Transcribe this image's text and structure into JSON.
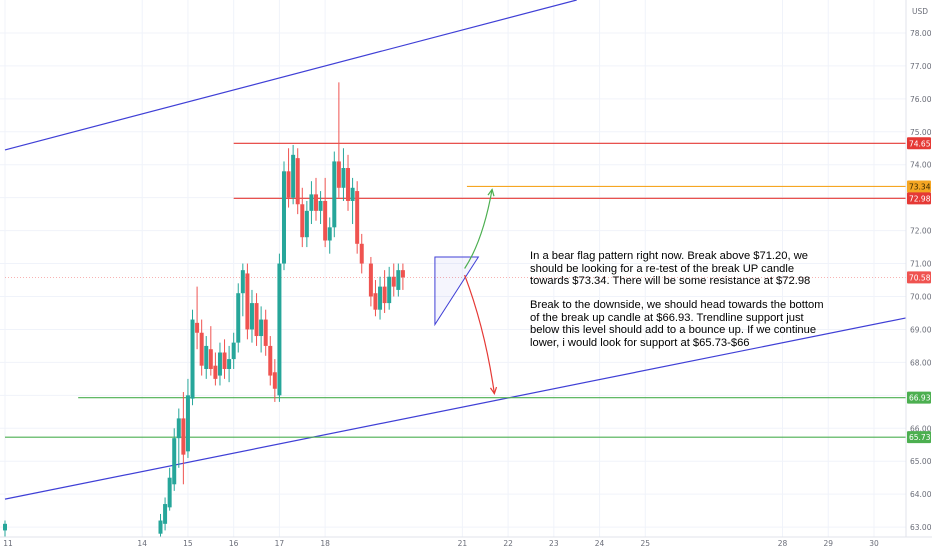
{
  "chart_data": {
    "type": "candlestick",
    "currency_label": "USD",
    "y_range": [
      62.7,
      79.0
    ],
    "x_range_days": [
      11.0,
      30.7
    ],
    "y_ticks": [
      "63.00",
      "64.00",
      "65.00",
      "66.00",
      "67.00",
      "68.00",
      "69.00",
      "70.00",
      "71.00",
      "72.00",
      "73.00",
      "74.00",
      "75.00",
      "76.00",
      "77.00",
      "78.00"
    ],
    "x_ticks": [
      "11",
      "14",
      "15",
      "16",
      "17",
      "18",
      "21",
      "22",
      "23",
      "24",
      "25",
      "28",
      "29",
      "30"
    ],
    "price_levels": [
      {
        "name": "resistance-74",
        "price": 74.65,
        "label": "74.65",
        "color": "#e53935"
      },
      {
        "name": "target",
        "price": 73.34,
        "label": "73.34",
        "color": "#f5a623"
      },
      {
        "name": "resistance-73",
        "price": 72.98,
        "label": "72.98",
        "color": "#e53935"
      },
      {
        "name": "last-price",
        "price": 70.58,
        "label": "70.58",
        "color": "#ef5350"
      },
      {
        "name": "support-67",
        "price": 66.93,
        "label": "66.93",
        "color": "#4caf50"
      },
      {
        "name": "support-65",
        "price": 65.73,
        "label": "65.73",
        "color": "#4caf50"
      }
    ],
    "channel_lines": [
      {
        "name": "channel-upper",
        "from": {
          "day": 11.0,
          "price": 74.45
        },
        "to": {
          "day": 23.5,
          "price": 79.0
        },
        "color": "#3f3fd6"
      },
      {
        "name": "channel-lower",
        "from": {
          "day": 11.0,
          "price": 63.85
        },
        "to": {
          "day": 30.7,
          "price": 69.35
        },
        "color": "#3f3fd6"
      }
    ],
    "pennant": [
      {
        "day": 20.4,
        "price": 71.2
      },
      {
        "day": 21.35,
        "price": 71.2
      },
      {
        "day": 20.4,
        "price": 69.15
      }
    ],
    "arrows": [
      {
        "name": "bullish-path",
        "color": "#4caf50",
        "points": [
          {
            "day": 21.05,
            "price": 70.85
          },
          {
            "day": 21.45,
            "price": 71.7
          },
          {
            "day": 21.65,
            "price": 73.25
          }
        ]
      },
      {
        "name": "bearish-path",
        "color": "#e53935",
        "points": [
          {
            "day": 21.05,
            "price": 70.65
          },
          {
            "day": 21.5,
            "price": 69.0
          },
          {
            "day": 21.7,
            "price": 67.05
          }
        ]
      }
    ],
    "candles": [
      {
        "d": 11.0,
        "o": 62.9,
        "h": 63.2,
        "l": 62.7,
        "c": 63.1
      },
      {
        "d": 14.4,
        "o": 62.8,
        "h": 63.4,
        "l": 62.7,
        "c": 63.2
      },
      {
        "d": 14.5,
        "o": 63.1,
        "h": 63.9,
        "l": 62.9,
        "c": 63.7
      },
      {
        "d": 14.6,
        "o": 63.6,
        "h": 64.8,
        "l": 63.5,
        "c": 64.5
      },
      {
        "d": 14.7,
        "o": 64.3,
        "h": 66.0,
        "l": 64.1,
        "c": 65.7
      },
      {
        "d": 14.8,
        "o": 65.7,
        "h": 66.6,
        "l": 64.8,
        "c": 66.3
      },
      {
        "d": 14.9,
        "o": 66.3,
        "h": 67.1,
        "l": 64.3,
        "c": 65.2
      },
      {
        "d": 15.0,
        "o": 65.3,
        "h": 67.5,
        "l": 65.1,
        "c": 67.0
      },
      {
        "d": 15.1,
        "o": 66.9,
        "h": 69.6,
        "l": 66.7,
        "c": 69.3
      },
      {
        "d": 15.2,
        "o": 69.2,
        "h": 70.3,
        "l": 68.4,
        "c": 68.9
      },
      {
        "d": 15.3,
        "o": 68.9,
        "h": 69.3,
        "l": 67.6,
        "c": 67.9
      },
      {
        "d": 15.4,
        "o": 67.8,
        "h": 68.8,
        "l": 67.5,
        "c": 68.5
      },
      {
        "d": 15.5,
        "o": 68.4,
        "h": 69.1,
        "l": 67.6,
        "c": 67.8
      },
      {
        "d": 15.6,
        "o": 67.9,
        "h": 68.3,
        "l": 67.3,
        "c": 67.5
      },
      {
        "d": 15.7,
        "o": 67.6,
        "h": 68.6,
        "l": 67.3,
        "c": 68.3
      },
      {
        "d": 15.8,
        "o": 68.3,
        "h": 68.7,
        "l": 67.5,
        "c": 67.8
      },
      {
        "d": 15.9,
        "o": 67.8,
        "h": 68.5,
        "l": 67.4,
        "c": 68.1
      },
      {
        "d": 16.0,
        "o": 68.1,
        "h": 68.9,
        "l": 67.8,
        "c": 68.6
      },
      {
        "d": 16.1,
        "o": 68.6,
        "h": 70.4,
        "l": 68.3,
        "c": 70.1
      },
      {
        "d": 16.2,
        "o": 70.1,
        "h": 71.0,
        "l": 69.4,
        "c": 70.8
      },
      {
        "d": 16.3,
        "o": 70.7,
        "h": 71.0,
        "l": 68.7,
        "c": 69.0
      },
      {
        "d": 16.4,
        "o": 69.0,
        "h": 70.2,
        "l": 68.6,
        "c": 69.8
      },
      {
        "d": 16.5,
        "o": 69.8,
        "h": 70.1,
        "l": 68.5,
        "c": 68.8
      },
      {
        "d": 16.6,
        "o": 68.8,
        "h": 69.7,
        "l": 68.3,
        "c": 69.3
      },
      {
        "d": 16.7,
        "o": 69.3,
        "h": 69.6,
        "l": 68.2,
        "c": 68.5
      },
      {
        "d": 16.8,
        "o": 68.5,
        "h": 68.8,
        "l": 67.3,
        "c": 67.6
      },
      {
        "d": 16.9,
        "o": 67.7,
        "h": 68.1,
        "l": 66.8,
        "c": 67.2
      },
      {
        "d": 17.0,
        "o": 67.0,
        "h": 71.3,
        "l": 66.8,
        "c": 71.0
      },
      {
        "d": 17.1,
        "o": 71.0,
        "h": 74.1,
        "l": 70.8,
        "c": 73.8
      },
      {
        "d": 17.2,
        "o": 73.8,
        "h": 74.5,
        "l": 72.7,
        "c": 73.0
      },
      {
        "d": 17.3,
        "o": 73.0,
        "h": 74.6,
        "l": 72.8,
        "c": 74.3
      },
      {
        "d": 17.4,
        "o": 74.2,
        "h": 74.5,
        "l": 72.5,
        "c": 72.8
      },
      {
        "d": 17.5,
        "o": 72.8,
        "h": 73.3,
        "l": 71.5,
        "c": 71.8
      },
      {
        "d": 17.6,
        "o": 71.8,
        "h": 72.9,
        "l": 71.5,
        "c": 72.6
      },
      {
        "d": 17.7,
        "o": 72.6,
        "h": 73.5,
        "l": 72.2,
        "c": 73.1
      },
      {
        "d": 17.8,
        "o": 73.1,
        "h": 73.6,
        "l": 72.3,
        "c": 72.6
      },
      {
        "d": 17.9,
        "o": 72.6,
        "h": 73.2,
        "l": 72.2,
        "c": 72.9
      },
      {
        "d": 18.0,
        "o": 72.9,
        "h": 73.6,
        "l": 71.5,
        "c": 71.7
      },
      {
        "d": 18.1,
        "o": 71.7,
        "h": 72.4,
        "l": 71.3,
        "c": 72.1
      },
      {
        "d": 18.2,
        "o": 72.1,
        "h": 74.4,
        "l": 71.8,
        "c": 74.1
      },
      {
        "d": 18.3,
        "o": 74.1,
        "h": 76.5,
        "l": 73.0,
        "c": 73.3
      },
      {
        "d": 18.4,
        "o": 73.3,
        "h": 74.5,
        "l": 72.9,
        "c": 73.9
      },
      {
        "d": 18.5,
        "o": 73.9,
        "h": 74.3,
        "l": 72.6,
        "c": 72.9
      },
      {
        "d": 18.6,
        "o": 72.9,
        "h": 73.6,
        "l": 72.2,
        "c": 73.3
      },
      {
        "d": 18.7,
        "o": 73.2,
        "h": 73.5,
        "l": 71.3,
        "c": 71.6
      },
      {
        "d": 18.8,
        "o": 71.6,
        "h": 71.9,
        "l": 70.7,
        "c": 71.0
      },
      {
        "d": 19.0,
        "o": 71.0,
        "h": 71.2,
        "l": 69.7,
        "c": 70.0
      },
      {
        "d": 19.1,
        "o": 70.1,
        "h": 70.5,
        "l": 69.4,
        "c": 69.6
      },
      {
        "d": 19.2,
        "o": 69.6,
        "h": 70.6,
        "l": 69.3,
        "c": 70.3
      },
      {
        "d": 19.3,
        "o": 70.3,
        "h": 70.8,
        "l": 69.5,
        "c": 69.8
      },
      {
        "d": 19.4,
        "o": 69.8,
        "h": 70.9,
        "l": 69.6,
        "c": 70.6
      },
      {
        "d": 19.5,
        "o": 70.6,
        "h": 71.0,
        "l": 70.0,
        "c": 70.3
      },
      {
        "d": 19.6,
        "o": 70.2,
        "h": 71.0,
        "l": 70.0,
        "c": 70.8
      },
      {
        "d": 19.7,
        "o": 70.8,
        "h": 71.0,
        "l": 70.2,
        "c": 70.58
      }
    ]
  },
  "notes": {
    "paragraph_1": "In a bear flag pattern right now. Break above $71.20, we should be looking for a re-test of the break UP candle towards $73.34. There will be some resistance at $72.98",
    "paragraph_2": "Break to the downside, we should head towards the bottom of the break up candle at $66.93. Trendline support just below this level should add to a bounce up. If we continue lower, i would look for support at $65.73-$66"
  },
  "colors": {
    "up": "#26a69a",
    "down": "#ef5350",
    "grid": "#f0f3fa",
    "axis_text": "#131722"
  }
}
